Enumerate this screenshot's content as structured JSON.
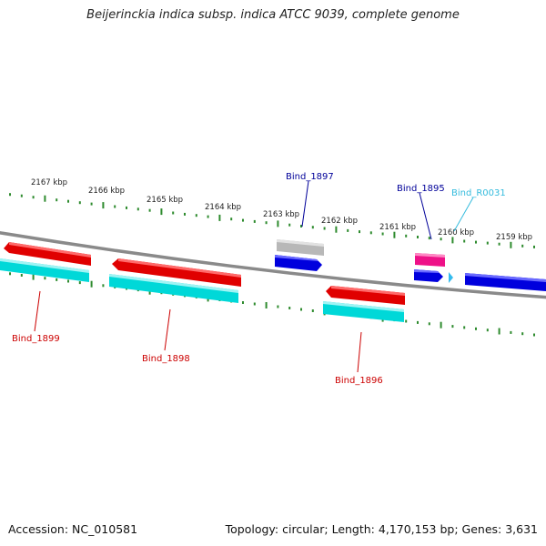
{
  "title": "Beijerinckia indica subsp. indica ATCC 9039, complete genome",
  "footer": {
    "accession": "Accession: NC_010581",
    "summary": "Topology: circular; Length: 4,170,153 bp; Genes: 3,631"
  },
  "colors": {
    "backbone": "#8a8a8a",
    "tick": "#2e8b2e",
    "cds_reverse": "#e00000",
    "cds_forward": "#0000dd",
    "rna": "#00d8d8",
    "pseudogene": "#b8b8b8",
    "label_red": "#cc0000",
    "label_blue": "#000099",
    "label_cyan": "#33bbdd",
    "pink": "#ee1188"
  },
  "scale_labels": [
    "2167 kbp",
    "2166 kbp",
    "2165 kbp",
    "2164 kbp",
    "2163 kbp",
    "2162 kbp",
    "2161 kbp",
    "2160 kbp",
    "2159 kbp"
  ],
  "genes": [
    {
      "id": "Bind_1899",
      "type": "CDS",
      "strand": "reverse"
    },
    {
      "id": "Bind_1898",
      "type": "CDS",
      "strand": "reverse"
    },
    {
      "id": "Bind_1897",
      "type": "CDS",
      "strand": "forward"
    },
    {
      "id": "Bind_1896",
      "type": "CDS",
      "strand": "reverse"
    },
    {
      "id": "Bind_1895",
      "type": "CDS",
      "strand": "forward"
    },
    {
      "id": "Bind_R0031",
      "type": "tRNA",
      "strand": "forward"
    }
  ]
}
